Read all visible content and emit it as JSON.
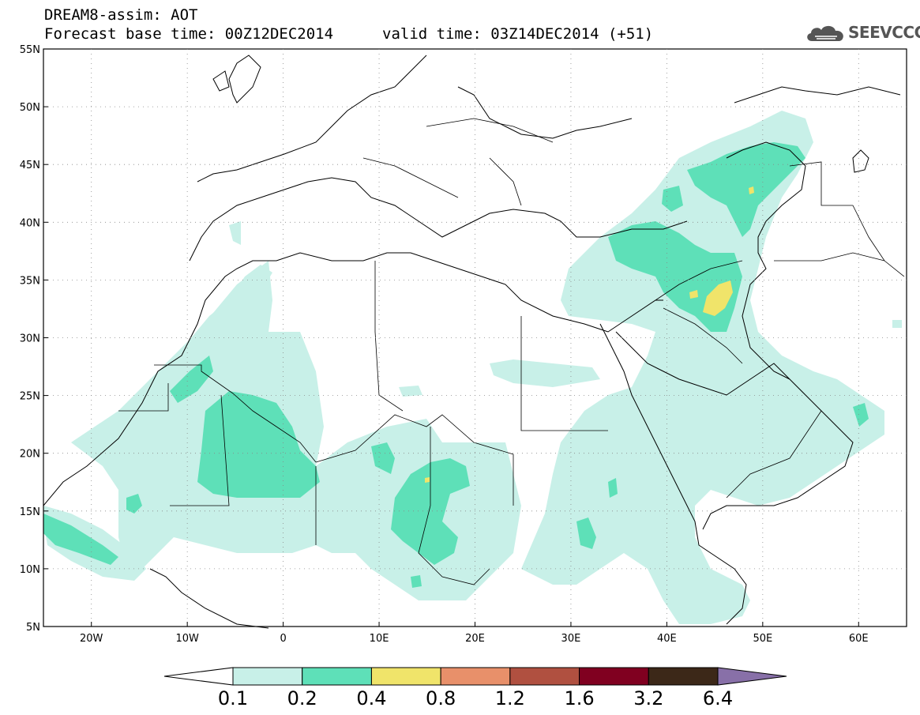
{
  "header": {
    "title_line_1": "DREAM8-assim: AOT",
    "title_line_2": "Forecast base time: 00Z12DEC2014",
    "valid_time": "valid time: 03Z14DEC2014 (+51)",
    "logo_text": "SEEVCCC",
    "logo_icon": "cloud-icon"
  },
  "map": {
    "lon_range": [
      -25,
      65
    ],
    "lat_range": [
      5,
      55
    ],
    "gridlines": "dotted",
    "lat_labels": [
      "55N",
      "50N",
      "45N",
      "40N",
      "35N",
      "30N",
      "25N",
      "20N",
      "15N",
      "10N",
      "5N"
    ],
    "lon_labels": [
      "20W",
      "10W",
      "0",
      "10E",
      "20E",
      "30E",
      "40E",
      "50E",
      "60E"
    ]
  },
  "colorbar": {
    "thresholds": [
      "0.1",
      "0.2",
      "0.4",
      "0.8",
      "1.2",
      "1.6",
      "3.2",
      "6.4"
    ],
    "colors": [
      "#ffffff",
      "#c8f0e8",
      "#5ee0b8",
      "#f0e46a",
      "#e8906a",
      "#b05040",
      "#800020",
      "#3c2818",
      "#8870a8"
    ]
  }
}
